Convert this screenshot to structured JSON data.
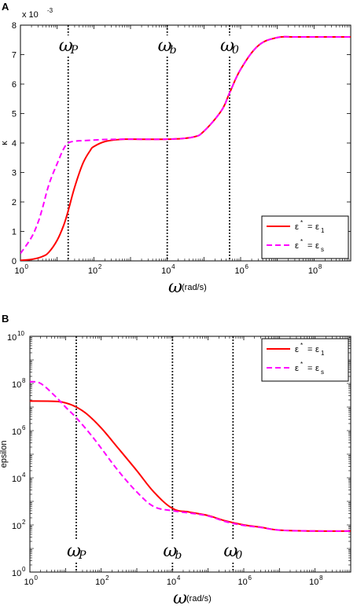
{
  "chart_data": [
    {
      "type": "line",
      "panel_label": "A",
      "xscale": "log",
      "yscale": "linear",
      "xlim": [
        1,
        1000000000
      ],
      "ylim": [
        0,
        8
      ],
      "xlabel_symbol": "ω",
      "xlabel_unit": "(rad/s)",
      "ylabel": "κ",
      "y_multiplier": "x 10",
      "y_multiplier_exp": "-3",
      "x_ticks": [
        {
          "value": 1,
          "base": "10",
          "exp": "0"
        },
        {
          "value": 100,
          "base": "10",
          "exp": "2"
        },
        {
          "value": 10000,
          "base": "10",
          "exp": "4"
        },
        {
          "value": 1000000,
          "base": "10",
          "exp": "6"
        },
        {
          "value": 100000000,
          "base": "10",
          "exp": "8"
        }
      ],
      "y_ticks": [
        "0",
        "1",
        "2",
        "3",
        "4",
        "5",
        "6",
        "7",
        "8"
      ],
      "vlines": [
        {
          "x": 20,
          "label": "ω",
          "sub": "P"
        },
        {
          "x": 10000,
          "label": "ω",
          "sub": "b"
        },
        {
          "x": 500000,
          "label": "ω",
          "sub": "0"
        }
      ],
      "legend_position": "bottom-right",
      "series": [
        {
          "name_lhs": "ε",
          "name_lhs_sup": "*",
          "name_rhs": "ε",
          "name_rhs_sub": "1",
          "color": "#ff0000",
          "dash": "solid",
          "x": [
            1,
            2,
            4,
            6,
            10,
            15,
            20,
            30,
            50,
            80,
            100,
            200,
            500,
            1000,
            10000,
            50000,
            100000,
            300000,
            500000,
            1000000,
            3000000,
            10000000,
            30000000,
            100000000,
            1000000000
          ],
          "y": [
            0.02,
            0.05,
            0.15,
            0.3,
            0.7,
            1.2,
            1.7,
            2.5,
            3.3,
            3.75,
            3.88,
            4.05,
            4.12,
            4.13,
            4.13,
            4.2,
            4.4,
            5.1,
            5.7,
            6.5,
            7.3,
            7.58,
            7.6,
            7.6,
            7.6
          ]
        },
        {
          "name_lhs": "ε",
          "name_lhs_sup": "*",
          "name_rhs": "ε",
          "name_rhs_sub": "s",
          "color": "#ff00ff",
          "dash": "dashed",
          "x": [
            1,
            2,
            3,
            4,
            6,
            10,
            15,
            20,
            30,
            50,
            100,
            200,
            1000,
            10000,
            50000,
            100000,
            300000,
            500000,
            1000000,
            3000000,
            10000000,
            30000000,
            100000000,
            1000000000
          ],
          "y": [
            0.25,
            0.8,
            1.3,
            1.8,
            2.6,
            3.3,
            3.8,
            4.0,
            4.06,
            4.08,
            4.1,
            4.12,
            4.13,
            4.13,
            4.2,
            4.4,
            5.1,
            5.7,
            6.5,
            7.3,
            7.58,
            7.6,
            7.6,
            7.6
          ]
        }
      ]
    },
    {
      "type": "line",
      "panel_label": "B",
      "xscale": "log",
      "yscale": "log",
      "xlim": [
        1,
        1000000000
      ],
      "ylim": [
        1,
        10000000000
      ],
      "xlabel_symbol": "ω",
      "xlabel_unit": "(rad/s)",
      "ylabel": "epsilon",
      "x_ticks": [
        {
          "value": 1,
          "base": "10",
          "exp": "0"
        },
        {
          "value": 100,
          "base": "10",
          "exp": "2"
        },
        {
          "value": 10000,
          "base": "10",
          "exp": "4"
        },
        {
          "value": 1000000,
          "base": "10",
          "exp": "6"
        },
        {
          "value": 100000000,
          "base": "10",
          "exp": "8"
        }
      ],
      "y_ticks": [
        {
          "value": 1,
          "base": "10",
          "exp": "0"
        },
        {
          "value": 100,
          "base": "10",
          "exp": "2"
        },
        {
          "value": 10000,
          "base": "10",
          "exp": "4"
        },
        {
          "value": 1000000,
          "base": "10",
          "exp": "6"
        },
        {
          "value": 100000000,
          "base": "10",
          "exp": "8"
        },
        {
          "value": 10000000000,
          "base": "10",
          "exp": "10"
        }
      ],
      "vlines": [
        {
          "x": 20,
          "label": "ω",
          "sub": "P"
        },
        {
          "x": 10000,
          "label": "ω",
          "sub": "b"
        },
        {
          "x": 500000,
          "label": "ω",
          "sub": "0"
        }
      ],
      "legend_position": "top-right",
      "series": [
        {
          "name_lhs": "ε",
          "name_lhs_sup": "*",
          "name_rhs": "ε",
          "name_rhs_sub": "1",
          "color": "#ff0000",
          "dash": "solid",
          "x": [
            1,
            5,
            10,
            20,
            40,
            100,
            300,
            1000,
            3000,
            10000,
            30000,
            100000,
            300000,
            1000000,
            3000000,
            10000000,
            100000000,
            1000000000
          ],
          "y": [
            18000000,
            17500000,
            15000000,
            10000000,
            5000000,
            1300000,
            180000,
            20000,
            2500,
            500,
            350,
            250,
            150,
            100,
            80,
            60,
            55,
            55
          ]
        },
        {
          "name_lhs": "ε",
          "name_lhs_sup": "*",
          "name_rhs": "ε",
          "name_rhs_sub": "s",
          "color": "#ff00ff",
          "dash": "dashed",
          "x": [
            1,
            2,
            5,
            10,
            20,
            50,
            100,
            300,
            1000,
            3000,
            10000,
            30000,
            100000,
            300000,
            1000000,
            3000000,
            10000000,
            100000000,
            1000000000
          ],
          "y": [
            120000000,
            100000000,
            30000000,
            10000000,
            3500000,
            700000,
            180000,
            20000,
            2500,
            600,
            400,
            320,
            240,
            140,
            95,
            78,
            60,
            55,
            55
          ]
        }
      ]
    }
  ]
}
